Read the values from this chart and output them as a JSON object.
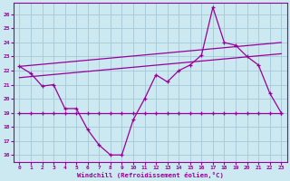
{
  "xlabel": "Windchill (Refroidissement éolien,°C)",
  "background_color": "#cce8f0",
  "grid_color": "#aaccda",
  "line_color": "#990099",
  "hours": [
    0,
    1,
    2,
    3,
    4,
    5,
    6,
    7,
    8,
    9,
    10,
    11,
    12,
    13,
    14,
    15,
    16,
    17,
    18,
    19,
    20,
    21,
    22,
    23
  ],
  "windchill_line": [
    22.3,
    21.8,
    20.9,
    21.0,
    19.3,
    19.3,
    17.8,
    16.7,
    16.0,
    16.0,
    18.5,
    20.0,
    21.7,
    21.2,
    22.0,
    22.4,
    23.1,
    26.5,
    24.0,
    23.8,
    23.0,
    22.4,
    20.4,
    19.0
  ],
  "flat_line": [
    19.0,
    19.0,
    19.0,
    19.0,
    19.0,
    19.0,
    19.0,
    19.0,
    19.0,
    19.0,
    19.0,
    19.0,
    19.0,
    19.0,
    19.0,
    19.0,
    19.0,
    19.0,
    19.0,
    19.0,
    19.0,
    19.0,
    19.0,
    19.0
  ],
  "trend1_x": [
    0,
    23
  ],
  "trend1_y": [
    22.3,
    24.0
  ],
  "trend2_x": [
    0,
    23
  ],
  "trend2_y": [
    21.5,
    23.2
  ],
  "ylim": [
    15.5,
    26.8
  ],
  "yticks": [
    16,
    17,
    18,
    19,
    20,
    21,
    22,
    23,
    24,
    25,
    26
  ],
  "xticks": [
    0,
    1,
    2,
    3,
    4,
    5,
    6,
    7,
    8,
    9,
    10,
    11,
    12,
    13,
    14,
    15,
    16,
    17,
    18,
    19,
    20,
    21,
    22,
    23
  ]
}
